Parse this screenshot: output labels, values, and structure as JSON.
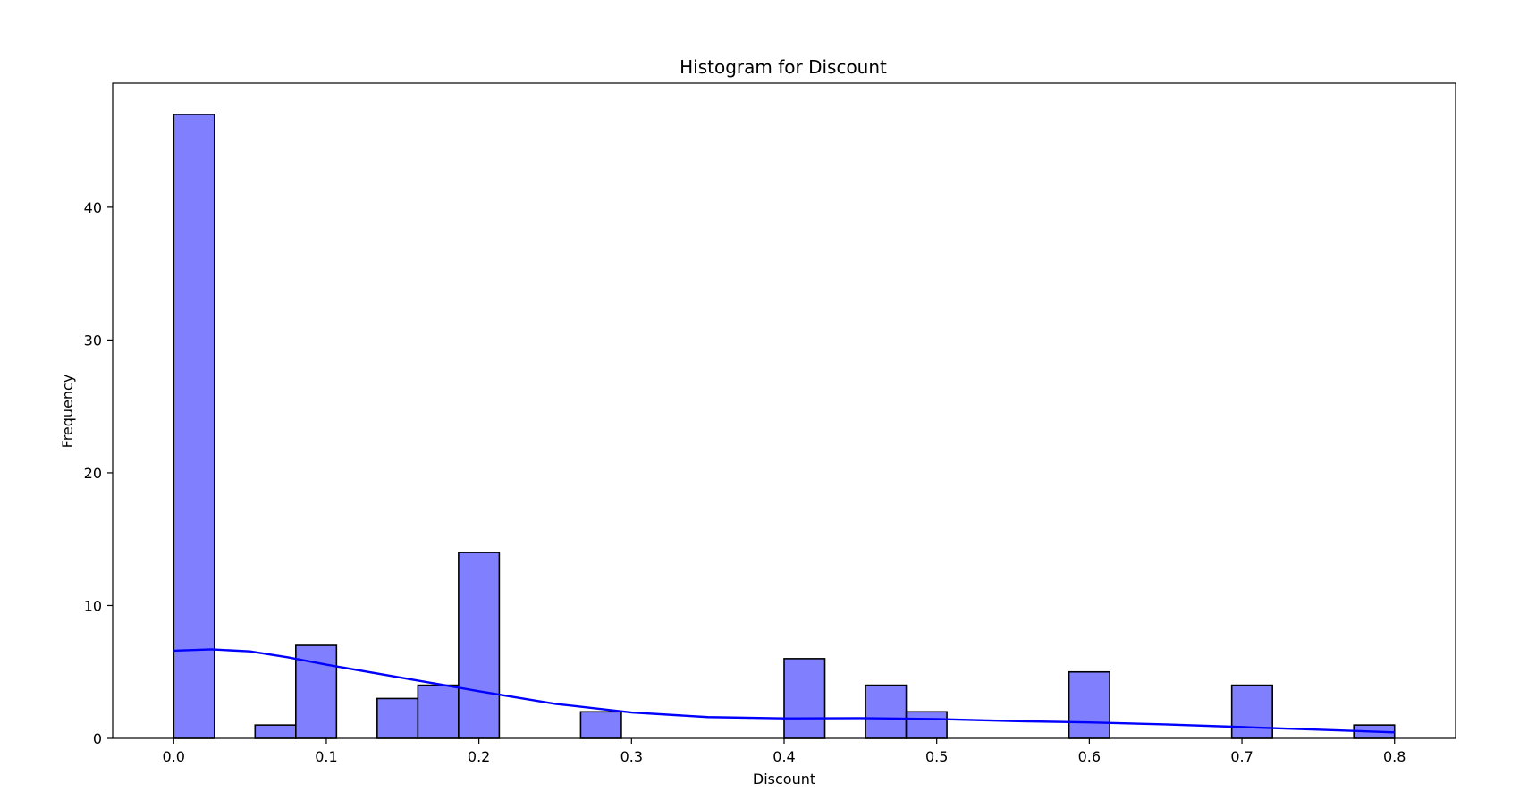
{
  "chart_data": {
    "type": "bar",
    "title": "Histogram for Discount",
    "xlabel": "Discount",
    "ylabel": "Frequency",
    "xlim": [
      -0.04,
      0.84
    ],
    "ylim": [
      0,
      49.35
    ],
    "x_ticks": [
      0.0,
      0.1,
      0.2,
      0.3,
      0.4,
      0.5,
      0.6,
      0.7,
      0.8
    ],
    "x_tick_labels": [
      "0.0",
      "0.1",
      "0.2",
      "0.3",
      "0.4",
      "0.5",
      "0.6",
      "0.7",
      "0.8"
    ],
    "y_ticks": [
      0,
      10,
      20,
      30,
      40
    ],
    "y_tick_labels": [
      "0",
      "10",
      "20",
      "30",
      "40"
    ],
    "bin_edges": [
      0.0,
      0.02667,
      0.05333,
      0.08,
      0.10667,
      0.13333,
      0.16,
      0.18667,
      0.21333,
      0.24,
      0.26667,
      0.29333,
      0.32,
      0.34667,
      0.37333,
      0.4,
      0.42667,
      0.45333,
      0.48,
      0.50667,
      0.53333,
      0.56,
      0.58667,
      0.61333,
      0.64,
      0.66667,
      0.69333,
      0.72,
      0.74667,
      0.77333,
      0.8
    ],
    "counts": [
      47,
      0,
      1,
      7,
      0,
      3,
      4,
      14,
      0,
      0,
      2,
      0,
      0,
      0,
      0,
      6,
      0,
      4,
      2,
      0,
      0,
      0,
      5,
      0,
      0,
      0,
      4,
      0,
      0,
      1
    ],
    "kde": {
      "x": [
        0.0,
        0.025,
        0.05,
        0.075,
        0.1,
        0.15,
        0.2,
        0.25,
        0.3,
        0.35,
        0.4,
        0.45,
        0.5,
        0.55,
        0.6,
        0.65,
        0.7,
        0.75,
        0.8
      ],
      "y": [
        6.6,
        6.7,
        6.55,
        6.1,
        5.55,
        4.55,
        3.55,
        2.6,
        1.95,
        1.6,
        1.5,
        1.52,
        1.45,
        1.3,
        1.2,
        1.05,
        0.85,
        0.65,
        0.45
      ]
    },
    "grid": false,
    "colors": {
      "bar_fill": "#8080ff",
      "bar_edge": "#000000",
      "kde_line": "#0000ff"
    }
  }
}
